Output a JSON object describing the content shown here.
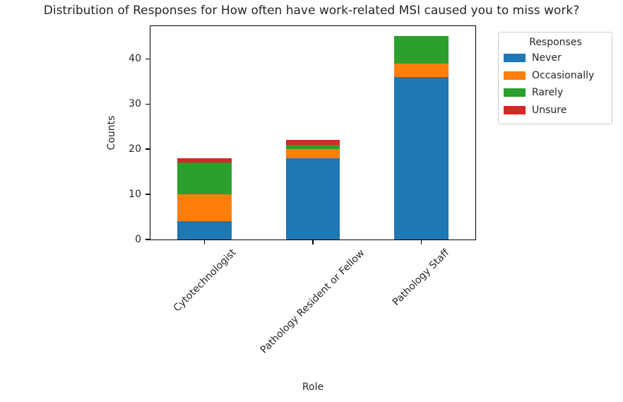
{
  "chart_data": {
    "type": "bar",
    "stacked": true,
    "title": "Distribution of Responses for How often have work-related MSI caused you to miss work?",
    "xlabel": "Role",
    "ylabel": "Counts",
    "categories": [
      "Cytotechnologist",
      "Pathology Resident or Fellow",
      "Pathology Staff"
    ],
    "series": [
      {
        "name": "Never",
        "color": "#1f77b4",
        "values": [
          4,
          18,
          36
        ]
      },
      {
        "name": "Occasionally",
        "color": "#ff7f0e",
        "values": [
          6,
          2,
          3
        ]
      },
      {
        "name": "Rarely",
        "color": "#2ca02c",
        "values": [
          7,
          1,
          6
        ]
      },
      {
        "name": "Unsure",
        "color": "#d62728",
        "values": [
          1,
          1,
          0
        ]
      }
    ],
    "totals": [
      18,
      22,
      45
    ],
    "yticks": [
      0,
      10,
      20,
      30,
      40
    ],
    "ylim": [
      0,
      47.25
    ],
    "bar_width_fraction": 0.5,
    "x_tick_rotation_deg": 45,
    "grid": false,
    "legend": {
      "title": "Responses",
      "position": "outside-upper-right"
    }
  }
}
